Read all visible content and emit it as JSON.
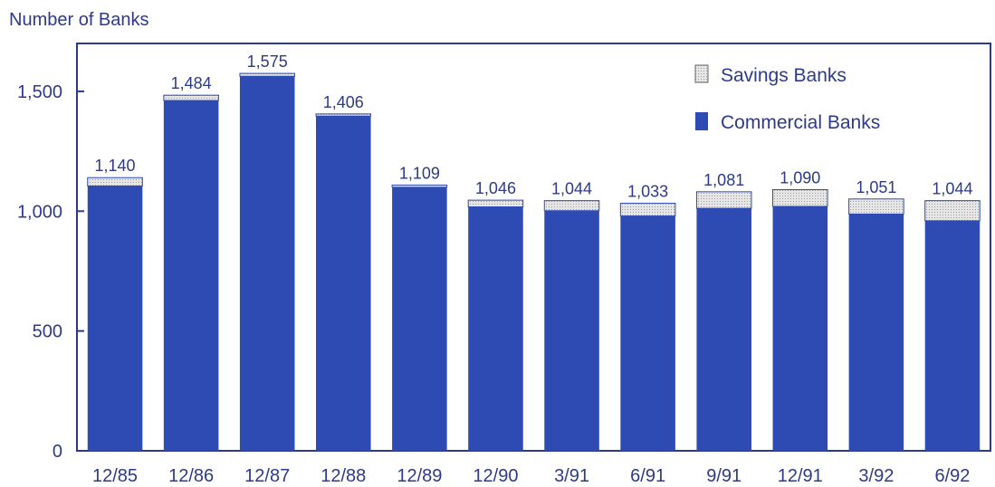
{
  "chart_data": {
    "type": "bar",
    "stacked": true,
    "ylabel": "Number of Banks",
    "ylim": [
      0,
      1700
    ],
    "yticks": [
      0,
      500,
      1000,
      1500
    ],
    "ytick_labels": [
      "0",
      "500",
      "1,000",
      "1,500"
    ],
    "grid": false,
    "legend_position": "top-right",
    "categories": [
      "12/85",
      "12/86",
      "12/87",
      "12/88",
      "12/89",
      "12/90",
      "3/91",
      "6/91",
      "9/91",
      "12/91",
      "3/92",
      "6/92"
    ],
    "series": [
      {
        "name": "Commercial Banks",
        "values": [
          1105,
          1462,
          1563,
          1397,
          1100,
          1018,
          1002,
          980,
          1012,
          1020,
          988,
          960
        ],
        "color": "#2e4bb3"
      },
      {
        "name": "Savings Banks",
        "values": [
          35,
          22,
          12,
          9,
          9,
          28,
          42,
          53,
          69,
          70,
          63,
          84
        ],
        "color": "#dcdcdc"
      }
    ],
    "totals": [
      1140,
      1484,
      1575,
      1406,
      1109,
      1046,
      1044,
      1033,
      1081,
      1090,
      1051,
      1044
    ],
    "total_labels": [
      "1,140",
      "1,484",
      "1,575",
      "1,406",
      "1,109",
      "1,046",
      "1,044",
      "1,033",
      "1,081",
      "1,090",
      "1,051",
      "1,044"
    ],
    "legend": {
      "savings_label": "Savings Banks",
      "commercial_label": "Commercial Banks"
    }
  },
  "colors": {
    "axis": "#2d3a8c",
    "text": "#2d3a8c",
    "commercial": "#2e4bb3",
    "savings": "#dcdcdc"
  }
}
